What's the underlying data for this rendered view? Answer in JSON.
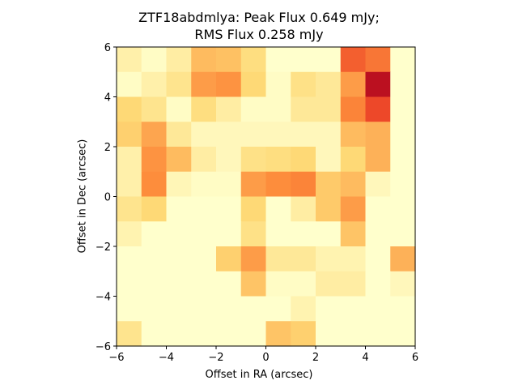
{
  "chart_data": {
    "type": "heatmap",
    "title_lines": [
      "ZTF18abdmlya: Peak Flux 0.649 mJy;",
      "RMS Flux 0.258 mJy"
    ],
    "xlabel": "Offset in RA (arcsec)",
    "ylabel": "Offset in Dec (arcsec)",
    "xlim": [
      -6,
      6
    ],
    "ylim": [
      -6,
      6
    ],
    "xticks": [
      "−6",
      "−4",
      "−2",
      "0",
      "2",
      "4",
      "6"
    ],
    "yticks": [
      "−6",
      "−4",
      "−2",
      "0",
      "2",
      "4",
      "6"
    ],
    "grid": false,
    "colormap": "YlOrRd",
    "value_range": [
      0,
      1
    ],
    "rows_top_to_bottom": [
      [
        0.1,
        0.02,
        0.12,
        0.35,
        0.33,
        0.22,
        0.0,
        0.0,
        0.0,
        0.6,
        0.55,
        0.0
      ],
      [
        0.02,
        0.1,
        0.18,
        0.45,
        0.48,
        0.25,
        0.02,
        0.2,
        0.15,
        0.45,
        0.85,
        0.0
      ],
      [
        0.25,
        0.18,
        0.02,
        0.22,
        0.12,
        0.02,
        0.02,
        0.15,
        0.15,
        0.52,
        0.65,
        0.0
      ],
      [
        0.28,
        0.42,
        0.15,
        0.05,
        0.05,
        0.05,
        0.05,
        0.05,
        0.05,
        0.35,
        0.38,
        0.0
      ],
      [
        0.1,
        0.48,
        0.35,
        0.12,
        0.05,
        0.2,
        0.22,
        0.25,
        0.05,
        0.25,
        0.38,
        0.0
      ],
      [
        0.1,
        0.5,
        0.06,
        0.02,
        0.02,
        0.45,
        0.5,
        0.52,
        0.3,
        0.35,
        0.05,
        0.0
      ],
      [
        0.18,
        0.25,
        0.0,
        0.0,
        0.0,
        0.25,
        0.0,
        0.12,
        0.3,
        0.45,
        0.0,
        0.0
      ],
      [
        0.08,
        0.0,
        0.0,
        0.0,
        0.0,
        0.2,
        0.0,
        0.0,
        0.0,
        0.32,
        0.0,
        0.0
      ],
      [
        0.0,
        0.0,
        0.0,
        0.0,
        0.28,
        0.45,
        0.15,
        0.15,
        0.08,
        0.08,
        0.0,
        0.38
      ],
      [
        0.0,
        0.0,
        0.0,
        0.0,
        0.0,
        0.32,
        0.02,
        0.02,
        0.12,
        0.12,
        0.0,
        0.05
      ],
      [
        0.0,
        0.0,
        0.0,
        0.0,
        0.0,
        0.0,
        0.0,
        0.08,
        0.0,
        0.0,
        0.0,
        0.0
      ],
      [
        0.18,
        0.0,
        0.0,
        0.0,
        0.0,
        0.0,
        0.32,
        0.28,
        0.0,
        0.0,
        0.0,
        0.0
      ]
    ]
  }
}
